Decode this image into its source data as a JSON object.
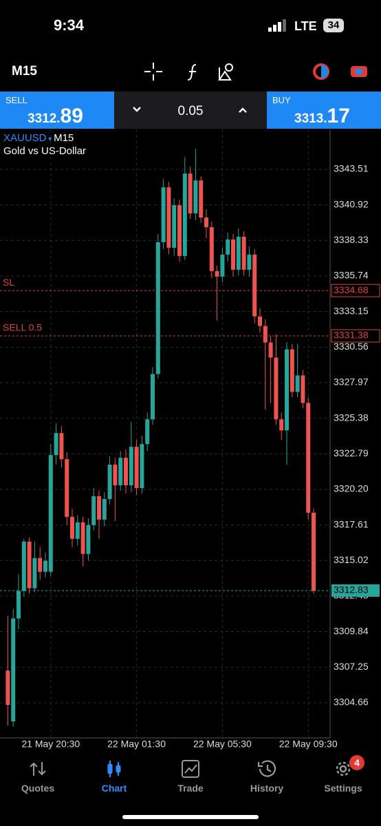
{
  "status_bar": {
    "time": "9:34",
    "network": "LTE",
    "battery": "34"
  },
  "toolbar": {
    "timeframe": "M15"
  },
  "trade_panel": {
    "sell_label": "SELL",
    "sell_price_main": "3312.",
    "sell_price_big": "89",
    "lot": "0.05",
    "buy_label": "BUY",
    "buy_price_main": "3313.",
    "buy_price_big": "17"
  },
  "chart_data": {
    "type": "candlestick",
    "symbol": "XAUUSD",
    "timeframe": "M15",
    "description": "Gold vs US-Dollar",
    "categories": [
      null,
      null,
      null,
      null,
      null,
      null,
      null,
      null,
      "21 May 20:30",
      null,
      null,
      null,
      null,
      null,
      null,
      null,
      null,
      null,
      null,
      null,
      null,
      null,
      null,
      null,
      "22 May 01:30",
      null,
      null,
      null,
      null,
      null,
      null,
      null,
      null,
      null,
      null,
      null,
      null,
      null,
      null,
      null,
      "22 May 05:30",
      null,
      null,
      null,
      null,
      null,
      null,
      null,
      null,
      null,
      null,
      null,
      null,
      null,
      null,
      null,
      "22 May 09:30",
      null
    ],
    "open": [
      3307.0,
      3303.3,
      3310.8,
      3312.8,
      3316.4,
      3313.0,
      3315.2,
      3314.2,
      3314.2,
      3322.7,
      3324.3,
      3322.4,
      3318.2,
      3316.6,
      3317.8,
      3315.5,
      3317.6,
      3319.7,
      3318.0,
      3319.5,
      3322.0,
      3320.5,
      3322.5,
      3320.5,
      3323.3,
      3320.3,
      3323.5,
      3325.3,
      3328.6,
      3338.2,
      3342.2,
      3337.8,
      3340.9,
      3337.2,
      3343.2,
      3340.3,
      3342.7,
      3340.0,
      3339.3,
      3336.1,
      3335.7,
      3337.3,
      3338.4,
      3336.2,
      3338.6,
      3336.2,
      3337.3,
      3332.8,
      3332.1,
      3330.9,
      3329.8,
      3325.3,
      3324.5,
      3330.4,
      3327.3,
      3328.5,
      3326.5,
      3318.5
    ],
    "high": [
      3311.0,
      3311.5,
      3314.0,
      3316.6,
      3316.7,
      3316.4,
      3316.0,
      3315.6,
      3323.5,
      3325.0,
      3324.8,
      3322.9,
      3318.8,
      3318.3,
      3318.2,
      3318.1,
      3320.3,
      3320.1,
      3320.0,
      3322.6,
      3322.5,
      3323.0,
      3323.1,
      3325.1,
      3323.8,
      3324.1,
      3325.8,
      3329.1,
      3338.8,
      3342.8,
      3342.6,
      3341.4,
      3341.3,
      3344.4,
      3343.7,
      3345.0,
      3343.0,
      3340.6,
      3339.7,
      3336.5,
      3337.8,
      3338.9,
      3338.8,
      3339.2,
      3339.0,
      3337.9,
      3337.7,
      3333.4,
      3332.6,
      3331.4,
      3331.5,
      3325.8,
      3330.9,
      3330.8,
      3330.8,
      3328.9,
      3326.9,
      3318.8
    ],
    "low": [
      3303.0,
      3302.9,
      3310.0,
      3312.4,
      3312.6,
      3312.7,
      3313.6,
      3313.8,
      3313.9,
      3322.0,
      3321.8,
      3317.6,
      3316.0,
      3316.1,
      3314.6,
      3315.0,
      3317.2,
      3316.6,
      3317.5,
      3319.1,
      3317.9,
      3320.1,
      3319.9,
      3320.0,
      3319.8,
      3319.9,
      3323.0,
      3324.9,
      3328.3,
      3337.7,
      3337.3,
      3337.2,
      3336.8,
      3336.9,
      3339.9,
      3339.8,
      3339.6,
      3338.5,
      3335.6,
      3332.5,
      3335.3,
      3336.8,
      3335.7,
      3335.8,
      3335.8,
      3335.7,
      3332.3,
      3331.6,
      3326.0,
      3326.5,
      3324.9,
      3323.8,
      3322.0,
      3326.9,
      3326.9,
      3326.1,
      3318.0,
      3312.6
    ],
    "close": [
      3304.5,
      3310.8,
      3312.8,
      3316.4,
      3313.0,
      3315.2,
      3314.2,
      3315.0,
      3322.7,
      3324.3,
      3322.4,
      3318.2,
      3316.6,
      3317.8,
      3315.5,
      3317.6,
      3319.7,
      3318.0,
      3319.5,
      3322.0,
      3320.5,
      3322.5,
      3320.5,
      3323.3,
      3320.3,
      3323.5,
      3325.3,
      3328.6,
      3338.2,
      3342.2,
      3337.8,
      3340.9,
      3337.2,
      3343.2,
      3340.3,
      3342.7,
      3340.0,
      3339.3,
      3336.1,
      3335.7,
      3337.3,
      3338.4,
      3336.2,
      3338.6,
      3336.2,
      3337.3,
      3332.8,
      3332.1,
      3330.9,
      3329.8,
      3325.3,
      3324.5,
      3330.4,
      3327.3,
      3328.5,
      3326.5,
      3318.5,
      3312.8
    ],
    "up_color": "#26a69a",
    "down_color": "#ef5350",
    "ylim": [
      3302.1,
      3346.42
    ],
    "yticks": [
      3343.51,
      3340.92,
      3338.33,
      3335.74,
      3333.15,
      3330.56,
      3327.97,
      3325.38,
      3322.79,
      {
        "value": 3320.2,
        "label": "3320.20"
      },
      3317.61,
      3315.02,
      3312.43,
      3309.84,
      3307.25,
      3304.66
    ],
    "grid": true,
    "levels": [
      {
        "label": "SL",
        "value": 3334.68,
        "color": "#e0413a"
      },
      {
        "label": "SELL 0.5",
        "value": 3331.38,
        "color": "#e0413a"
      },
      {
        "value": 3312.83,
        "color": "#26a69a"
      }
    ]
  },
  "tab_bar": {
    "tabs": [
      "Quotes",
      "Chart",
      "Trade",
      "History",
      "Settings"
    ],
    "badge": "4"
  }
}
